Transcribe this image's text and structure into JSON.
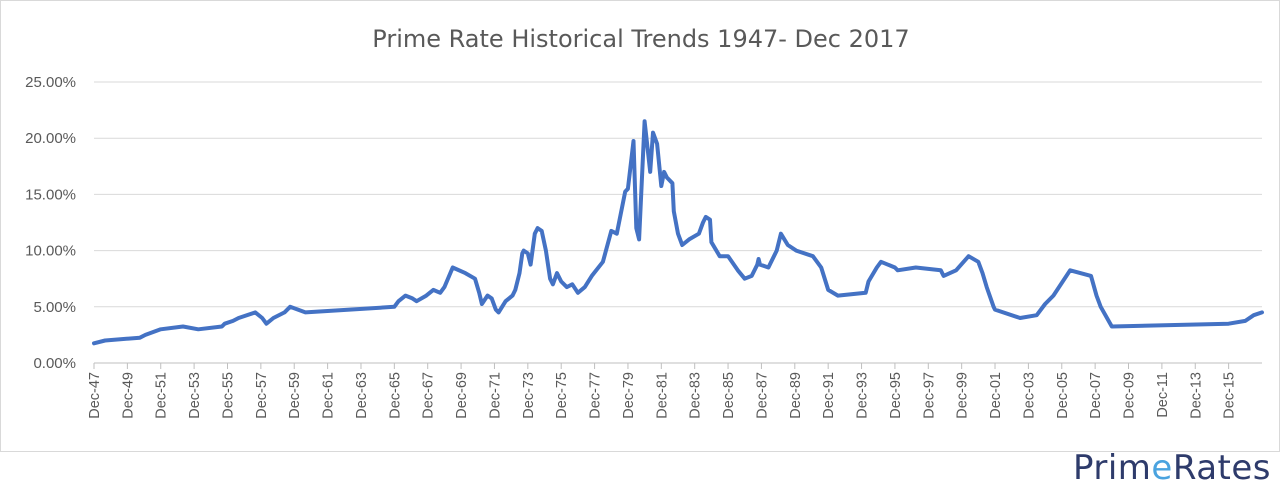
{
  "chart_data": {
    "type": "line",
    "title": "Prime Rate Historical Trends 1947- Dec 2017",
    "xlabel": "",
    "ylabel": "",
    "ylim": [
      0,
      25
    ],
    "y_ticks": [
      "0.00%",
      "5.00%",
      "10.00%",
      "15.00%",
      "20.00%",
      "25.00%"
    ],
    "x_ticks": [
      "Dec-47",
      "Dec-49",
      "Dec-51",
      "Dec-53",
      "Dec-55",
      "Dec-57",
      "Dec-59",
      "Dec-61",
      "Dec-63",
      "Dec-65",
      "Dec-67",
      "Dec-69",
      "Dec-71",
      "Dec-73",
      "Dec-75",
      "Dec-77",
      "Dec-79",
      "Dec-81",
      "Dec-83",
      "Dec-85",
      "Dec-87",
      "Dec-89",
      "Dec-91",
      "Dec-93",
      "Dec-95",
      "Dec-97",
      "Dec-99",
      "Dec-01",
      "Dec-03",
      "Dec-05",
      "Dec-07",
      "Dec-09",
      "Dec-11",
      "Dec-13",
      "Dec-15"
    ],
    "grid": true,
    "legend": "none",
    "line_color": "#4472c4",
    "series": [
      {
        "name": "",
        "points": [
          [
            "Dec-47",
            1.75
          ],
          [
            "Aug-48",
            2.0
          ],
          [
            "Sep-50",
            2.25
          ],
          [
            "Jan-51",
            2.5
          ],
          [
            "Dec-51",
            3.0
          ],
          [
            "Apr-53",
            3.25
          ],
          [
            "Mar-54",
            3.0
          ],
          [
            "Aug-55",
            3.25
          ],
          [
            "Oct-55",
            3.5
          ],
          [
            "Apr-56",
            3.75
          ],
          [
            "Aug-56",
            4.0
          ],
          [
            "Aug-57",
            4.5
          ],
          [
            "Jan-58",
            4.0
          ],
          [
            "Apr-58",
            3.5
          ],
          [
            "Sep-58",
            4.0
          ],
          [
            "May-59",
            4.5
          ],
          [
            "Sep-59",
            5.0
          ],
          [
            "Aug-60",
            4.5
          ],
          [
            "Dec-65",
            5.0
          ],
          [
            "Mar-66",
            5.5
          ],
          [
            "Aug-66",
            6.0
          ],
          [
            "Jan-67",
            5.75
          ],
          [
            "Apr-67",
            5.5
          ],
          [
            "Nov-67",
            6.0
          ],
          [
            "Apr-68",
            6.5
          ],
          [
            "Sep-68",
            6.25
          ],
          [
            "Dec-68",
            6.75
          ],
          [
            "Jun-69",
            8.5
          ],
          [
            "Mar-70",
            8.0
          ],
          [
            "Oct-70",
            7.5
          ],
          [
            "Jan-71",
            6.25
          ],
          [
            "Mar-71",
            5.25
          ],
          [
            "Jul-71",
            6.0
          ],
          [
            "Oct-71",
            5.75
          ],
          [
            "Jan-72",
            4.75
          ],
          [
            "Mar-72",
            4.5
          ],
          [
            "Aug-72",
            5.5
          ],
          [
            "Jan-73",
            6.0
          ],
          [
            "Mar-73",
            6.5
          ],
          [
            "Jun-73",
            8.0
          ],
          [
            "Aug-73",
            9.75
          ],
          [
            "Sep-73",
            10.0
          ],
          [
            "Dec-73",
            9.75
          ],
          [
            "Feb-74",
            8.75
          ],
          [
            "May-74",
            11.5
          ],
          [
            "Jul-74",
            12.0
          ],
          [
            "Oct-74",
            11.75
          ],
          [
            "Jan-75",
            10.0
          ],
          [
            "Apr-75",
            7.5
          ],
          [
            "Jun-75",
            7.0
          ],
          [
            "Sep-75",
            8.0
          ],
          [
            "Dec-75",
            7.25
          ],
          [
            "Apr-76",
            6.75
          ],
          [
            "Aug-76",
            7.0
          ],
          [
            "Dec-76",
            6.25
          ],
          [
            "May-77",
            6.75
          ],
          [
            "Oct-77",
            7.75
          ],
          [
            "Jun-78",
            9.0
          ],
          [
            "Dec-78",
            11.75
          ],
          [
            "Apr-79",
            11.5
          ],
          [
            "Oct-79",
            15.25
          ],
          [
            "Dec-79",
            15.5
          ],
          [
            "Apr-80",
            19.75
          ],
          [
            "Jun-80",
            12.0
          ],
          [
            "Aug-80",
            11.0
          ],
          [
            "Dec-80",
            21.5
          ],
          [
            "Apr-81",
            17.0
          ],
          [
            "Jun-81",
            20.5
          ],
          [
            "Sep-81",
            19.5
          ],
          [
            "Dec-81",
            15.75
          ],
          [
            "Feb-82",
            17.0
          ],
          [
            "Apr-82",
            16.5
          ],
          [
            "Aug-82",
            16.0
          ],
          [
            "Sep-82",
            13.5
          ],
          [
            "Dec-82",
            11.5
          ],
          [
            "Mar-83",
            10.5
          ],
          [
            "Aug-83",
            11.0
          ],
          [
            "Mar-84",
            11.5
          ],
          [
            "Jun-84",
            12.5
          ],
          [
            "Aug-84",
            13.0
          ],
          [
            "Nov-84",
            12.75
          ],
          [
            "Dec-84",
            10.75
          ],
          [
            "Jun-85",
            9.5
          ],
          [
            "Dec-85",
            9.5
          ],
          [
            "Jul-86",
            8.25
          ],
          [
            "Dec-86",
            7.5
          ],
          [
            "May-87",
            7.75
          ],
          [
            "Sep-87",
            8.75
          ],
          [
            "Oct-87",
            9.25
          ],
          [
            "Nov-87",
            8.75
          ],
          [
            "May-88",
            8.5
          ],
          [
            "Nov-88",
            10.0
          ],
          [
            "Feb-89",
            11.5
          ],
          [
            "Jul-89",
            10.5
          ],
          [
            "Jan-90",
            10.0
          ],
          [
            "Jan-91",
            9.5
          ],
          [
            "Jul-91",
            8.5
          ],
          [
            "Dec-91",
            6.5
          ],
          [
            "Jul-92",
            6.0
          ],
          [
            "Mar-94",
            6.25
          ],
          [
            "May-94",
            7.25
          ],
          [
            "Nov-94",
            8.5
          ],
          [
            "Feb-95",
            9.0
          ],
          [
            "Dec-95",
            8.5
          ],
          [
            "Feb-96",
            8.25
          ],
          [
            "Mar-97",
            8.5
          ],
          [
            "Sep-98",
            8.25
          ],
          [
            "Nov-98",
            7.75
          ],
          [
            "Aug-99",
            8.25
          ],
          [
            "May-00",
            9.5
          ],
          [
            "Dec-00",
            9.0
          ],
          [
            "Mar-01",
            8.0
          ],
          [
            "Jun-01",
            6.75
          ],
          [
            "Nov-01",
            5.0
          ],
          [
            "Dec-01",
            4.75
          ],
          [
            "Jun-03",
            4.0
          ],
          [
            "Jun-04",
            4.25
          ],
          [
            "Dec-04",
            5.25
          ],
          [
            "Jun-05",
            6.0
          ],
          [
            "Jun-06",
            8.25
          ],
          [
            "Sep-07",
            7.75
          ],
          [
            "Jan-08",
            6.0
          ],
          [
            "Apr-08",
            5.0
          ],
          [
            "Dec-08",
            3.25
          ],
          [
            "Dec-15",
            3.5
          ],
          [
            "Dec-16",
            3.75
          ],
          [
            "Jun-17",
            4.25
          ],
          [
            "Dec-17",
            4.5
          ]
        ]
      }
    ]
  },
  "logo": {
    "text_before": "Prim",
    "text_accent": "e",
    "text_after": "Rates"
  }
}
